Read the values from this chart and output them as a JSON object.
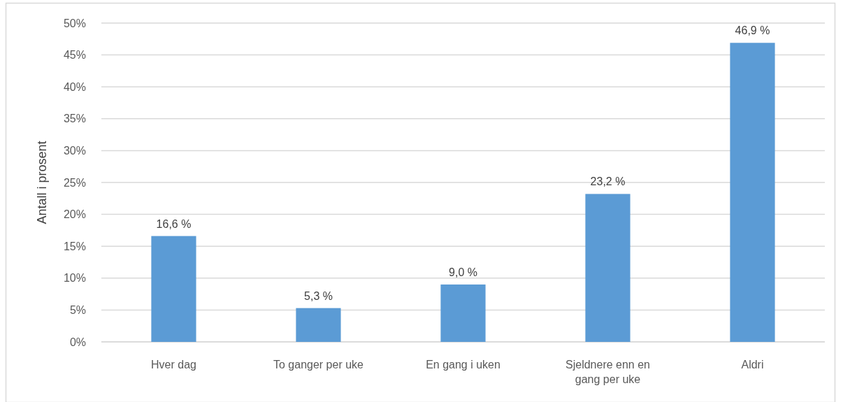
{
  "chart_data": {
    "type": "bar",
    "ylabel": "Antall i prosent",
    "categories": [
      "Hver dag",
      "To ganger per uke",
      "En gang i uken",
      "Sjeldnere enn en gang per uke",
      "Aldri"
    ],
    "values": [
      16.6,
      5.3,
      9.0,
      23.2,
      46.9
    ],
    "color": "#5b9bd5",
    "value_labels": [
      "16,6 %",
      "5,3 %",
      "9,0 %",
      "23,2 %",
      "46,9 %"
    ],
    "ylim": [
      0,
      50
    ],
    "yticks": [
      {
        "value": 0,
        "label": "0%"
      },
      {
        "value": 5,
        "label": "5%"
      },
      {
        "value": 10,
        "label": "10%"
      },
      {
        "value": 15,
        "label": "15%"
      },
      {
        "value": 20,
        "label": "20%"
      },
      {
        "value": 25,
        "label": "25%"
      },
      {
        "value": 30,
        "label": "30%"
      },
      {
        "value": 35,
        "label": "35%"
      },
      {
        "value": 40,
        "label": "40%"
      },
      {
        "value": 45,
        "label": "45%"
      },
      {
        "value": 50,
        "label": "50%"
      }
    ],
    "grid": "y"
  }
}
